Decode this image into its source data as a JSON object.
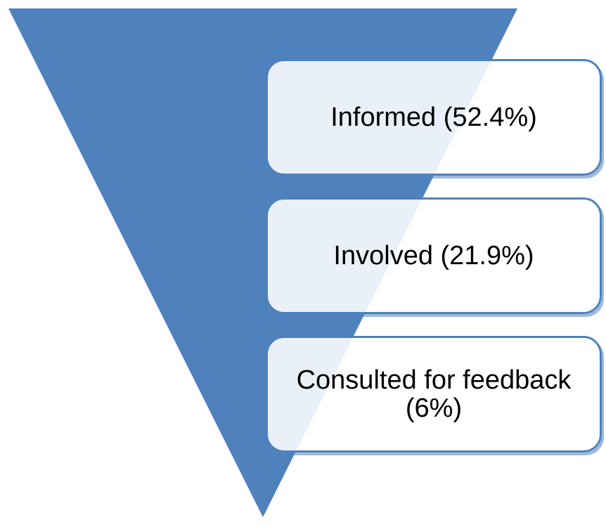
{
  "diagram": {
    "type": "inverted-funnel",
    "colors": {
      "funnel_fill": "#4f81bd",
      "box_border": "#4f81bd",
      "box_fill": "#ffffff"
    },
    "levels": [
      {
        "label": "Informed (52.4%)",
        "value_percent": 52.4
      },
      {
        "label": "Involved (21.9%)",
        "value_percent": 21.9
      },
      {
        "label": "Consulted for feedback (6%)",
        "value_percent": 6
      }
    ]
  }
}
